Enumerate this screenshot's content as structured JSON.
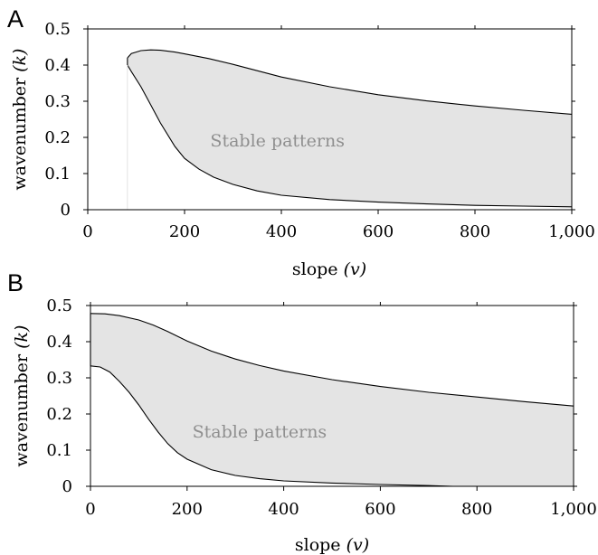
{
  "chart_data": [
    {
      "panel": "A",
      "type": "area",
      "xlabel": "slope",
      "xlabel_var": "(v)",
      "ylabel": "wavenumber",
      "ylabel_var": "(k)",
      "xlim": [
        0,
        1000
      ],
      "ylim": [
        0,
        0.5
      ],
      "xticks": [
        0,
        200,
        400,
        600,
        800,
        1000
      ],
      "xtick_labels": [
        "0",
        "200",
        "400",
        "600",
        "800",
        "1,000"
      ],
      "yticks": [
        0,
        0.1,
        0.2,
        0.3,
        0.4,
        0.5
      ],
      "ytick_labels": [
        "0",
        "0.1",
        "0.2",
        "0.3",
        "0.4",
        "0.5"
      ],
      "region_label": "Stable patterns",
      "region_fill": "#e4e4e4",
      "series": [
        {
          "x": [
            82,
            90,
            110,
            130,
            150,
            180,
            200,
            250,
            300,
            400,
            500,
            600,
            700,
            800,
            900,
            1000
          ],
          "y": [
            0.42,
            0.432,
            0.44,
            0.442,
            0.441,
            0.436,
            0.431,
            0.418,
            0.402,
            0.367,
            0.34,
            0.318,
            0.301,
            0.287,
            0.275,
            0.264
          ]
        },
        {
          "x": [
            82,
            90,
            110,
            130,
            150,
            180,
            200,
            230,
            260,
            300,
            350,
            400,
            500,
            600,
            700,
            800,
            900,
            1000
          ],
          "y": [
            0.4,
            0.382,
            0.34,
            0.29,
            0.24,
            0.175,
            0.142,
            0.112,
            0.09,
            0.07,
            0.052,
            0.04,
            0.028,
            0.021,
            0.016,
            0.012,
            0.01,
            0.008
          ]
        }
      ]
    },
    {
      "panel": "B",
      "type": "area",
      "xlabel": "slope",
      "xlabel_var": "(v)",
      "ylabel": "wavenumber",
      "ylabel_var": "(k)",
      "xlim": [
        0,
        1000
      ],
      "ylim": [
        0,
        0.5
      ],
      "xticks": [
        0,
        200,
        400,
        600,
        800,
        1000
      ],
      "xtick_labels": [
        "0",
        "200",
        "400",
        "600",
        "800",
        "1,000"
      ],
      "yticks": [
        0,
        0.1,
        0.2,
        0.3,
        0.4,
        0.5
      ],
      "ytick_labels": [
        "0",
        "0.1",
        "0.2",
        "0.3",
        "0.4",
        "0.5"
      ],
      "region_label": "Stable patterns",
      "region_fill": "#e4e4e4",
      "series": [
        {
          "x": [
            0,
            30,
            60,
            100,
            130,
            160,
            200,
            250,
            300,
            350,
            400,
            500,
            600,
            700,
            800,
            900,
            1000
          ],
          "y": [
            0.478,
            0.477,
            0.472,
            0.46,
            0.446,
            0.428,
            0.402,
            0.374,
            0.352,
            0.334,
            0.319,
            0.295,
            0.276,
            0.26,
            0.247,
            0.234,
            0.222
          ]
        },
        {
          "x": [
            0,
            20,
            40,
            60,
            80,
            100,
            120,
            140,
            160,
            180,
            200,
            250,
            300,
            350,
            400,
            500,
            600,
            700,
            750
          ],
          "y": [
            0.333,
            0.33,
            0.316,
            0.29,
            0.26,
            0.225,
            0.186,
            0.15,
            0.118,
            0.093,
            0.075,
            0.046,
            0.03,
            0.021,
            0.015,
            0.009,
            0.005,
            0.002,
            0.0
          ]
        }
      ]
    }
  ]
}
